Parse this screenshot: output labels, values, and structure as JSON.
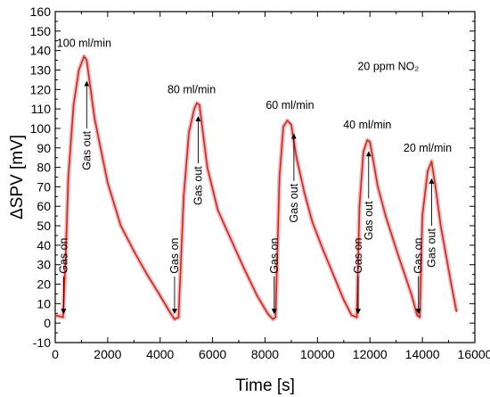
{
  "chart_data": {
    "type": "line",
    "xlabel": "Time [s]",
    "ylabel": "ΔSPV [mV]",
    "xlim": [
      0,
      16000
    ],
    "ylim": [
      -10,
      160
    ],
    "xticks": [
      0,
      2000,
      4000,
      6000,
      8000,
      10000,
      12000,
      14000,
      16000
    ],
    "yticks": [
      -10,
      0,
      10,
      20,
      30,
      40,
      50,
      60,
      70,
      80,
      90,
      100,
      110,
      120,
      130,
      140,
      150,
      160
    ],
    "grid": false,
    "series_color": "#a83a1e",
    "glow_color": "#ff2a55",
    "x": [
      0,
      300,
      400,
      500,
      700,
      900,
      1100,
      1200,
      1500,
      2000,
      2500,
      3000,
      3500,
      4000,
      4400,
      4550,
      4700,
      4900,
      5100,
      5300,
      5400,
      5500,
      5800,
      6200,
      6700,
      7200,
      7700,
      8100,
      8300,
      8400,
      8550,
      8700,
      8850,
      9000,
      9200,
      9500,
      9800,
      10200,
      10600,
      11000,
      11300,
      11500,
      11600,
      11750,
      11900,
      12000,
      12300,
      12600,
      13000,
      13400,
      13600,
      13800,
      13900,
      14000,
      14200,
      14350,
      14500,
      14700,
      14900,
      15100,
      15300
    ],
    "y": [
      4,
      3,
      35,
      75,
      112,
      130,
      137,
      135,
      105,
      72,
      50,
      37,
      25,
      14,
      5,
      2,
      3,
      65,
      98,
      110,
      113,
      112,
      80,
      58,
      43,
      28,
      14,
      5,
      2,
      3,
      75,
      101,
      104,
      102,
      85,
      67,
      52,
      38,
      25,
      12,
      4,
      3,
      60,
      88,
      94,
      93,
      70,
      55,
      38,
      22,
      14,
      4,
      3,
      55,
      78,
      83,
      70,
      50,
      35,
      20,
      6
    ],
    "annotations": [
      {
        "text": "100 ml/min",
        "x": 1100,
        "y": 142
      },
      {
        "text": "80 ml/min",
        "x": 5200,
        "y": 118
      },
      {
        "text": "60 ml/min",
        "x": 8950,
        "y": 110
      },
      {
        "text": "40 ml/min",
        "x": 11900,
        "y": 100
      },
      {
        "text": "20 ml/min",
        "x": 14200,
        "y": 88
      },
      {
        "text": "20 ppm NO₂",
        "x": 12700,
        "y": 130
      }
    ],
    "gas_on": [
      {
        "text": "Gas on",
        "x": 320,
        "y_from": 24,
        "y_to": 6
      },
      {
        "text": "Gas on",
        "x": 4550,
        "y_from": 24,
        "y_to": 6
      },
      {
        "text": "Gas on",
        "x": 8350,
        "y_from": 24,
        "y_to": 6
      },
      {
        "text": "Gas on",
        "x": 11550,
        "y_from": 24,
        "y_to": 6
      },
      {
        "text": "Gas on",
        "x": 13850,
        "y_from": 24,
        "y_to": 6
      }
    ],
    "gas_out": [
      {
        "text": "Gas out",
        "x": 1200,
        "y_from": 100,
        "y_to": 123
      },
      {
        "text": "Gas out",
        "x": 5450,
        "y_from": 82,
        "y_to": 105
      },
      {
        "text": "Gas out",
        "x": 9100,
        "y_from": 73,
        "y_to": 96
      },
      {
        "text": "Gas out",
        "x": 11950,
        "y_from": 64,
        "y_to": 87
      },
      {
        "text": "Gas out",
        "x": 14350,
        "y_from": 50,
        "y_to": 73
      }
    ]
  }
}
